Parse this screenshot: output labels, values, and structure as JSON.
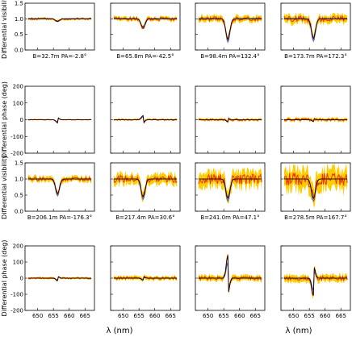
{
  "chart_data": {
    "type": "line",
    "x_label": "λ (nm)",
    "x_ticks": [
      "650",
      "655",
      "660",
      "665"
    ],
    "x_range": [
      646,
      668
    ],
    "line_center": 656.3,
    "colors": {
      "model": "#000000",
      "band": "#ffcc00",
      "data": "#ee3300",
      "wide": "#3366ee"
    },
    "row_ylabels": [
      "Differential visibility",
      "Differential phase (deg)",
      "Differential visibility",
      "Differential phase (deg)"
    ],
    "vis_ticks": [
      "0.0",
      "0.5",
      "1.0",
      "1.5"
    ],
    "vis_range": [
      0,
      1.5
    ],
    "phase_ticks": [
      "-200",
      "-100",
      "0",
      "100",
      "200"
    ],
    "phase_range": [
      -200,
      200
    ],
    "baselines_top": [
      "B=32.7m  PA=-2.8°",
      "B=65.8m  PA=-42.5°",
      "B=98.4m  PA=132.4°",
      "B=173.7m  PA=172.3°"
    ],
    "baselines_bottom": [
      "B=206.1m  PA=-176.3°",
      "B=217.4m  PA=30.6°",
      "B=241.0m  PA=47.1°",
      "B=278.5m  PA=167.7°"
    ],
    "visibility_dip_min": [
      [
        0.92,
        0.72,
        0.35,
        0.38
      ],
      [
        0.55,
        0.45,
        0.4,
        0.4
      ]
    ],
    "phase_feature_amplitude": [
      [
        -18,
        25,
        -12,
        -10
      ],
      [
        -15,
        -12,
        140,
        -110
      ]
    ]
  }
}
